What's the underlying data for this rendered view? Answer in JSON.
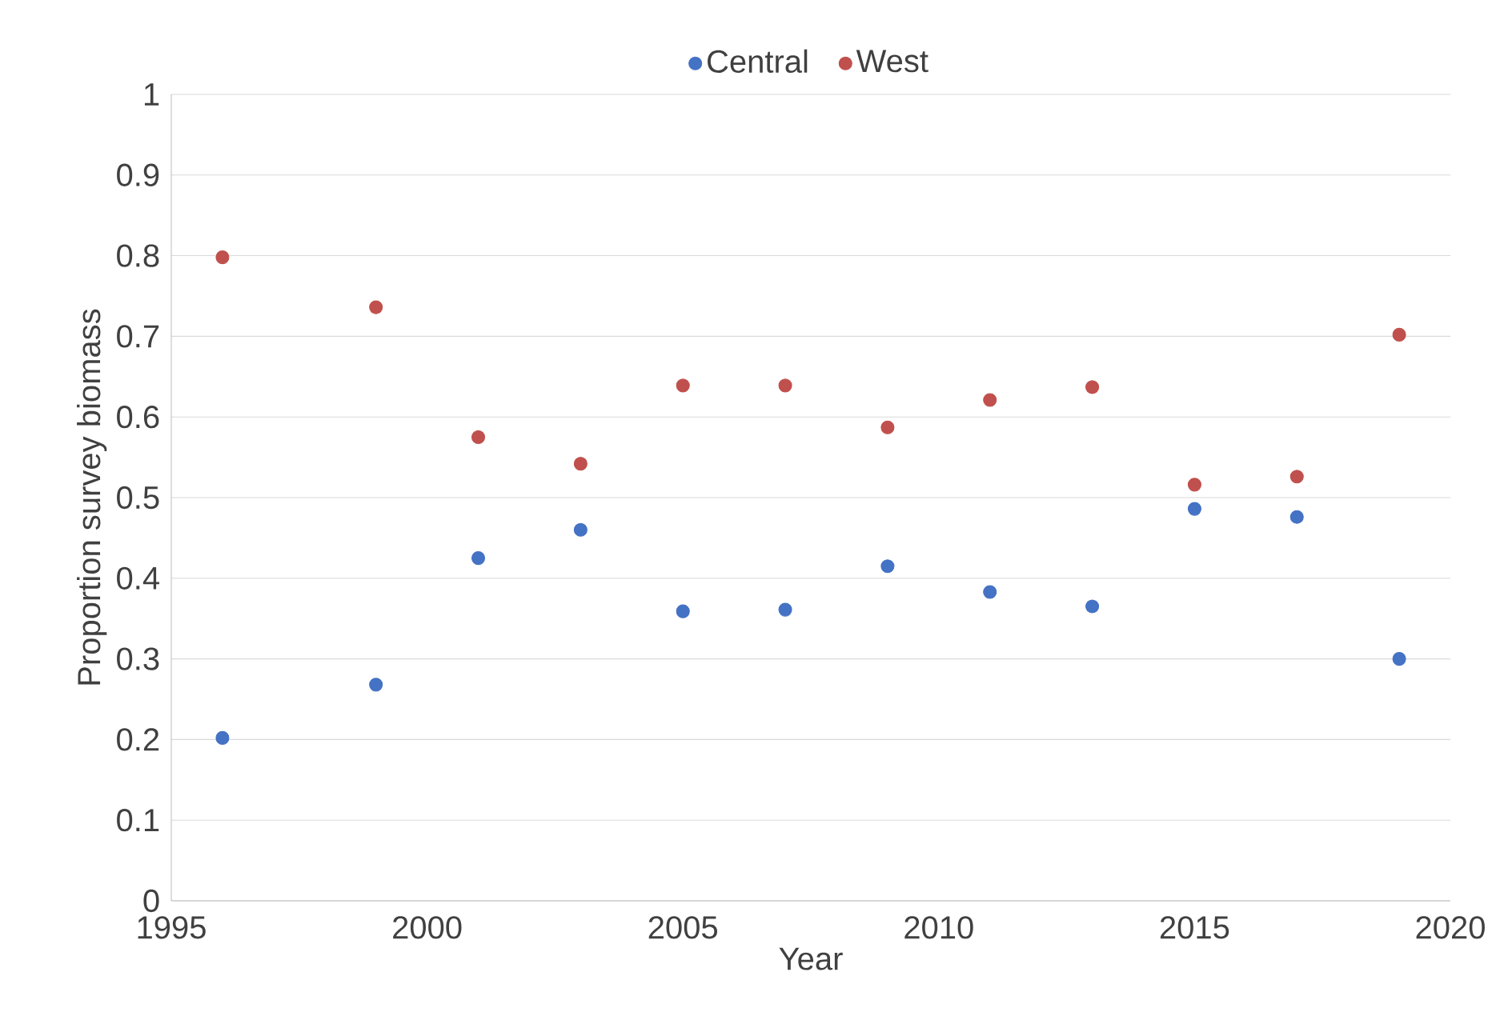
{
  "chart_data": {
    "type": "scatter",
    "xlabel": "Year",
    "ylabel": "Proportion survey biomass",
    "x": [
      1996,
      1999,
      2001,
      2003,
      2005,
      2007,
      2009,
      2011,
      2013,
      2015,
      2017,
      2019
    ],
    "series": [
      {
        "name": "Central",
        "color": "#4472c4",
        "values": [
          0.202,
          0.268,
          0.425,
          0.46,
          0.359,
          0.361,
          0.415,
          0.383,
          0.365,
          0.486,
          0.476,
          0.3
        ]
      },
      {
        "name": "West",
        "color": "#c0504d",
        "values": [
          0.798,
          0.736,
          0.575,
          0.542,
          0.639,
          0.639,
          0.587,
          0.621,
          0.637,
          0.516,
          0.526,
          0.702
        ]
      }
    ],
    "xlim": [
      1995,
      2020
    ],
    "ylim": [
      0,
      1
    ],
    "xticks": [
      1995,
      2000,
      2005,
      2010,
      2015,
      2020
    ],
    "yticks": [
      0,
      0.1,
      0.2,
      0.3,
      0.4,
      0.5,
      0.6,
      0.7,
      0.8,
      0.9,
      1
    ],
    "grid": "y",
    "legend": "top",
    "marker": "circle"
  }
}
